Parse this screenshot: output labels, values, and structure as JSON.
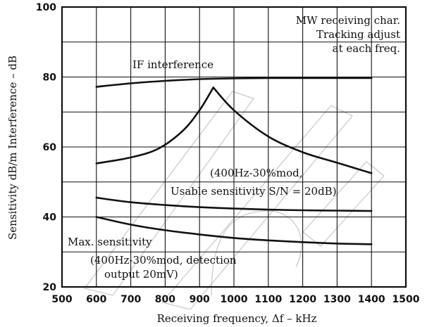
{
  "chart_data": {
    "type": "line",
    "title": "",
    "xlabel": "Receiving frequency, Δf  –  kHz",
    "ylabel": "Sensitivity dB/m   Interference  –  dB",
    "xlim": [
      500,
      1500
    ],
    "ylim": [
      20,
      100
    ],
    "x_ticks": [
      "500",
      "600",
      "700",
      "800",
      "900",
      "1000",
      "1100",
      "1200",
      "1300",
      "1400",
      "1500"
    ],
    "y_ticks": [
      "20",
      "40",
      "60",
      "80",
      "100"
    ],
    "grid": true,
    "series": [
      {
        "name": "IF interference",
        "x": [
          600,
          700,
          800,
          900,
          1000,
          1100,
          1200,
          1300,
          1400
        ],
        "y": [
          77.2,
          78.2,
          78.9,
          79.4,
          79.6,
          79.7,
          79.7,
          79.7,
          79.7
        ]
      },
      {
        "name": "",
        "x": [
          600,
          700,
          780,
          850,
          900,
          940,
          1000,
          1100,
          1200,
          1300,
          1400
        ],
        "y": [
          55.3,
          57.0,
          59.5,
          64.5,
          70.5,
          77.0,
          70.5,
          63.0,
          58.5,
          55.5,
          52.5
        ]
      },
      {
        "name": "Usable sensitivity",
        "x": [
          600,
          700,
          800,
          900,
          1000,
          1100,
          1200,
          1300,
          1400
        ],
        "y": [
          45.5,
          44.2,
          43.4,
          42.8,
          42.4,
          42.1,
          41.9,
          41.8,
          41.7
        ]
      },
      {
        "name": "Max. sensitivity",
        "x": [
          600,
          700,
          800,
          900,
          1000,
          1100,
          1200,
          1300,
          1400
        ],
        "y": [
          40.0,
          37.8,
          36.2,
          35.0,
          34.0,
          33.3,
          32.8,
          32.4,
          32.2
        ]
      }
    ],
    "annotations": {
      "corner_line1": "MW receiving char.",
      "corner_line2": "Tracking adjust",
      "corner_line3": "at each freq.",
      "if_label": "IF interference",
      "usable_line1": "(400Hz-30%mod,",
      "usable_line2": "Usable sensitivity  S/N = 20dB)",
      "max_line1": "Max. sensitivity",
      "max_line2": "(400Hz-30%mod, detection",
      "max_line3": "output 20mV)"
    }
  }
}
